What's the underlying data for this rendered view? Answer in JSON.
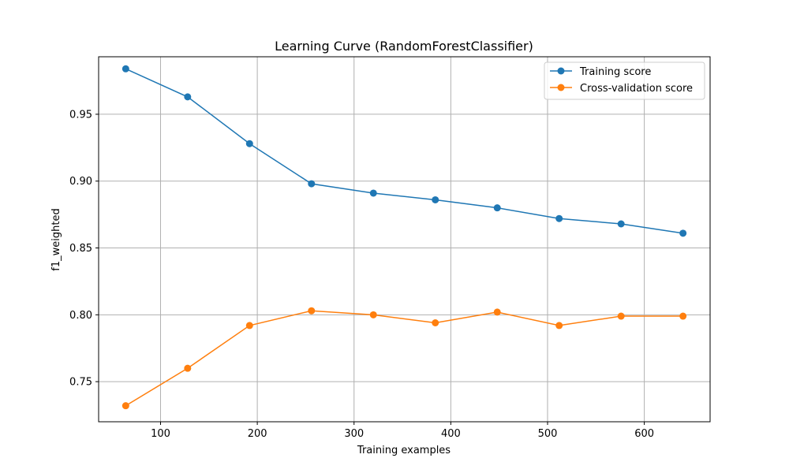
{
  "chart_data": {
    "type": "line",
    "title": "Learning Curve (RandomForestClassifier)",
    "xlabel": "Training examples",
    "ylabel": "f1_weighted",
    "xlim": [
      36,
      668
    ],
    "ylim": [
      0.72,
      0.993
    ],
    "xticks": [
      100,
      200,
      300,
      400,
      500,
      600
    ],
    "yticks": [
      0.75,
      0.8,
      0.85,
      0.9,
      0.95
    ],
    "xtick_labels": [
      "100",
      "200",
      "300",
      "400",
      "500",
      "600"
    ],
    "ytick_labels": [
      "0.75",
      "0.80",
      "0.85",
      "0.90",
      "0.95"
    ],
    "grid": true,
    "legend_position": "top-right",
    "x": [
      64,
      128,
      192,
      256,
      320,
      384,
      448,
      512,
      576,
      640
    ],
    "series": [
      {
        "name": "Training score",
        "color": "#1f77b4",
        "values": [
          0.984,
          0.963,
          0.928,
          0.898,
          0.891,
          0.886,
          0.88,
          0.872,
          0.868,
          0.861
        ]
      },
      {
        "name": "Cross-validation score",
        "color": "#ff7f0e",
        "values": [
          0.732,
          0.76,
          0.792,
          0.803,
          0.8,
          0.794,
          0.802,
          0.792,
          0.799,
          0.799
        ]
      }
    ]
  }
}
